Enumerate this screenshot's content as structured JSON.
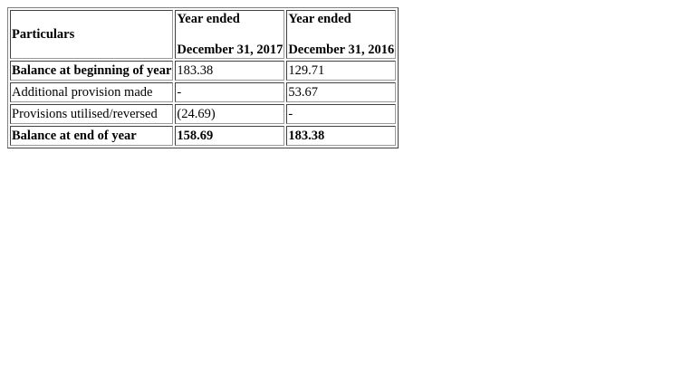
{
  "table": {
    "header": {
      "particulars": "Particulars",
      "col1": {
        "line1": "Year ended",
        "line2": "December 31, 2017"
      },
      "col2": {
        "line1": "Year ended",
        "line2": "December 31, 2016"
      }
    },
    "rows": [
      {
        "label": "Balance at beginning of year",
        "v2017": "183.38",
        "v2016": "129.71"
      },
      {
        "label": "Additional provision made",
        "v2017": "-",
        "v2016": "53.67"
      },
      {
        "label": "Provisions utilised/reversed",
        "v2017": "(24.69)",
        "v2016": "-"
      },
      {
        "label": "Balance at end of year",
        "v2017": "158.69",
        "v2016": "183.38"
      }
    ]
  }
}
